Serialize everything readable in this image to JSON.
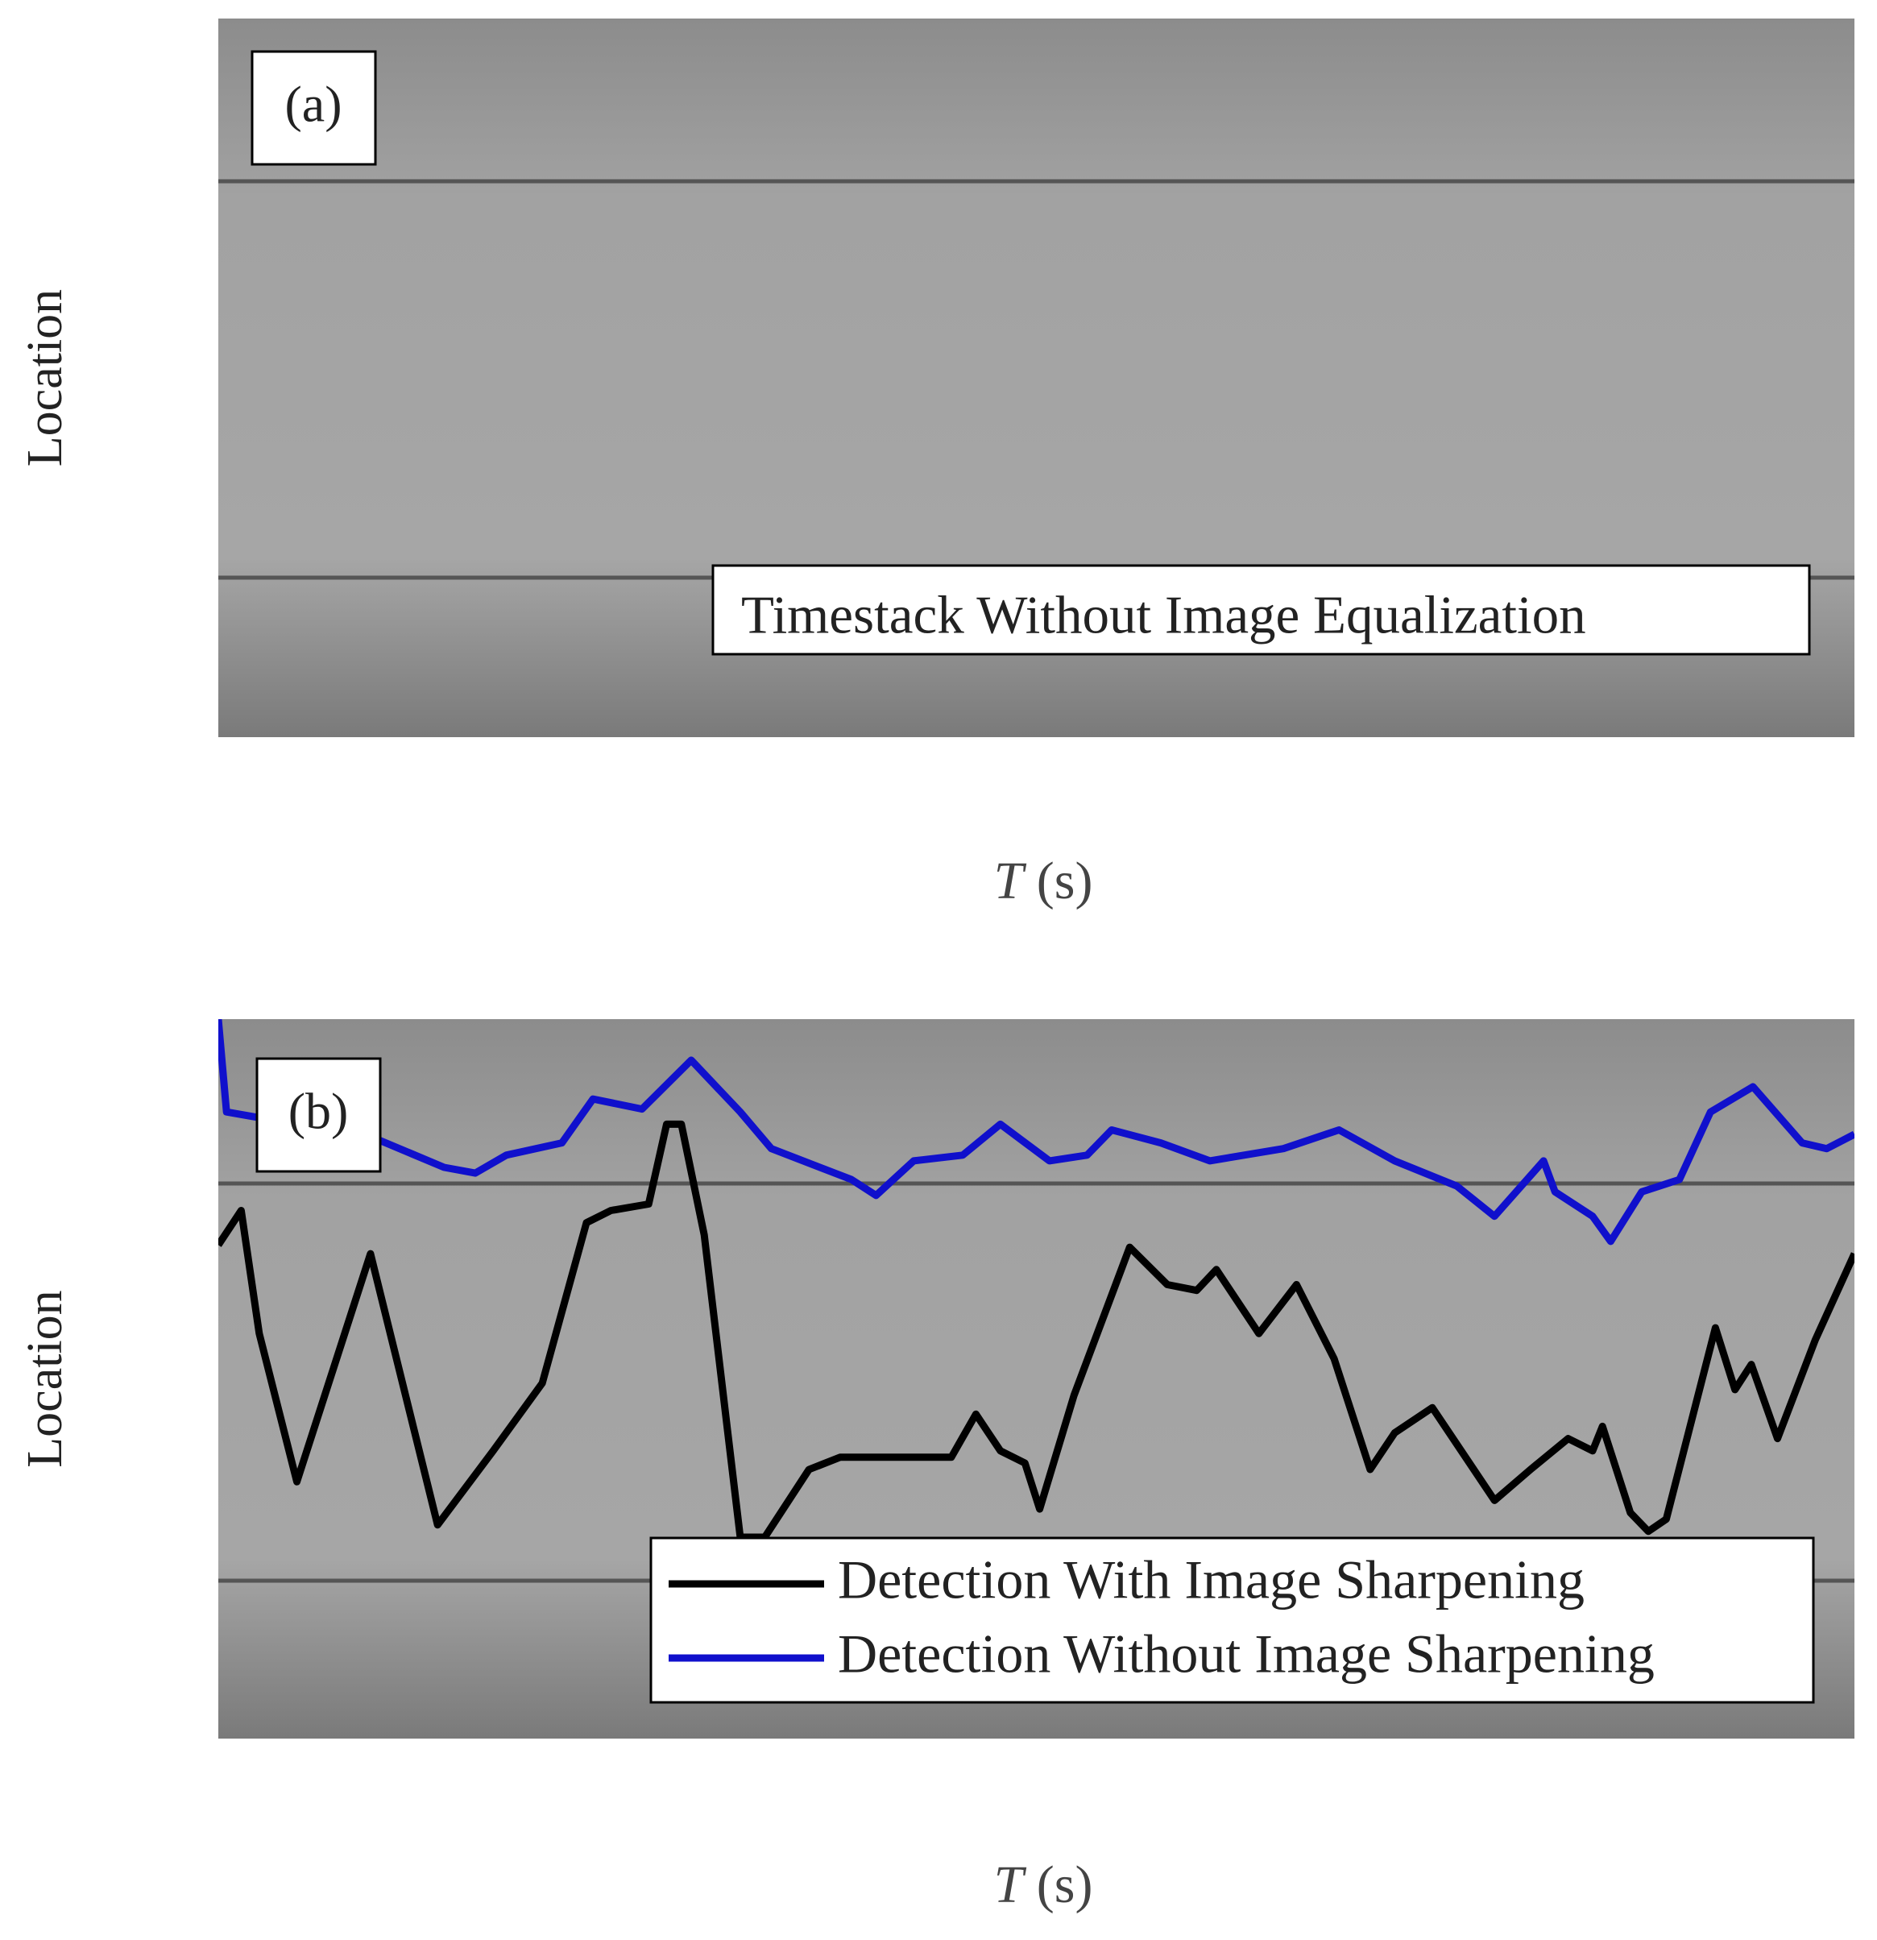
{
  "chart_data": [
    {
      "type": "image",
      "panel_label": "(a)",
      "annotation": "Timestack Without Image Equalization",
      "xlabel": "T (s)",
      "ylabel": "Location"
    },
    {
      "type": "line",
      "panel_label": "(b)",
      "xlabel": "T (s)",
      "ylabel": "Location",
      "xlim": [
        0,
        100
      ],
      "ylim": [
        0,
        100
      ],
      "legend": "lower right",
      "series": [
        {
          "name": "Detection With Image Sharpening",
          "color": "#000000",
          "x": [
            0,
            1.4,
            2.5,
            4.8,
            9.3,
            13.4,
            16.8,
            19.8,
            22.5,
            24.0,
            26.3,
            27.4,
            28.3,
            29.7,
            31.9,
            33.4,
            36.1,
            38.0,
            44.8,
            46.3,
            47.8,
            49.3,
            50.2,
            52.3,
            55.7,
            58.0,
            59.8,
            61.0,
            63.6,
            65.9,
            68.2,
            70.4,
            71.9,
            74.2,
            78.0,
            80.2,
            82.5,
            84.0,
            84.6,
            86.3,
            87.4,
            88.5,
            91.5,
            92.7,
            93.7,
            95.3,
            97.6,
            100
          ],
          "values": [
            68.6,
            73.4,
            56.3,
            35.7,
            67.4,
            29.7,
            40.0,
            49.4,
            71.7,
            73.4,
            74.3,
            85.4,
            85.4,
            70.0,
            28.0,
            28.0,
            37.4,
            39.1,
            39.1,
            45.1,
            40.0,
            38.3,
            31.9,
            47.7,
            68.3,
            63.1,
            62.3,
            65.2,
            56.3,
            63.1,
            52.8,
            37.4,
            42.5,
            46.0,
            33.1,
            37.4,
            41.7,
            40.0,
            43.4,
            31.4,
            28.8,
            30.5,
            57.1,
            48.5,
            52.0,
            41.7,
            55.4,
            67.4
          ]
        },
        {
          "name": "Detection Without Image Sharpening",
          "color": "#1010cc",
          "x": [
            0,
            0.5,
            2.5,
            9.3,
            13.8,
            15.7,
            17.6,
            21.0,
            22.9,
            25.9,
            28.9,
            31.9,
            33.8,
            38.7,
            40.2,
            42.5,
            45.5,
            47.8,
            50.8,
            53.1,
            54.6,
            57.6,
            60.6,
            65.1,
            68.5,
            71.9,
            75.7,
            78.0,
            81.0,
            81.7,
            84.0,
            85.1,
            87.0,
            89.3,
            91.2,
            93.8,
            96.8,
            98.3,
            100
          ],
          "values": [
            100,
            87.1,
            86.3,
            83.7,
            79.4,
            78.6,
            81.1,
            82.8,
            88.9,
            87.5,
            94.3,
            87.1,
            82.0,
            77.7,
            75.5,
            80.3,
            81.1,
            85.4,
            80.3,
            81.1,
            84.6,
            82.8,
            80.3,
            82.0,
            84.6,
            80.3,
            76.8,
            72.6,
            80.3,
            76.0,
            72.6,
            69.1,
            76.0,
            77.7,
            87.1,
            90.6,
            82.8,
            82.0,
            84.0
          ]
        }
      ]
    }
  ]
}
